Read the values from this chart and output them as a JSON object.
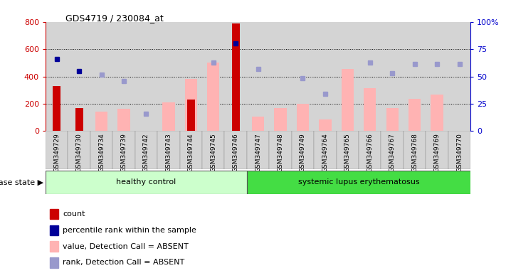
{
  "title": "GDS4719 / 230084_at",
  "samples": [
    "GSM349729",
    "GSM349730",
    "GSM349734",
    "GSM349739",
    "GSM349742",
    "GSM349743",
    "GSM349744",
    "GSM349745",
    "GSM349746",
    "GSM349747",
    "GSM349748",
    "GSM349749",
    "GSM349764",
    "GSM349765",
    "GSM349766",
    "GSM349767",
    "GSM349768",
    "GSM349769",
    "GSM349770"
  ],
  "healthy_indices": [
    0,
    1,
    2,
    3,
    4,
    5,
    6,
    7,
    8
  ],
  "lupus_indices": [
    9,
    10,
    11,
    12,
    13,
    14,
    15,
    16,
    17,
    18
  ],
  "count": [
    330,
    170,
    null,
    null,
    null,
    null,
    230,
    null,
    790,
    null,
    null,
    null,
    null,
    null,
    null,
    null,
    null,
    null,
    null
  ],
  "percentile_rank": [
    530,
    440,
    null,
    null,
    null,
    null,
    null,
    null,
    640,
    null,
    null,
    null,
    null,
    null,
    null,
    null,
    null,
    null,
    null
  ],
  "value_absent": [
    null,
    null,
    140,
    165,
    null,
    210,
    380,
    500,
    null,
    105,
    170,
    200,
    85,
    455,
    315,
    170,
    235,
    265,
    null
  ],
  "rank_absent": [
    null,
    null,
    415,
    365,
    125,
    null,
    null,
    500,
    null,
    455,
    null,
    385,
    275,
    null,
    500,
    425,
    490,
    490,
    490
  ],
  "ylim_left": [
    0,
    800
  ],
  "ylim_right": [
    0,
    100
  ],
  "yticks_left": [
    0,
    200,
    400,
    600,
    800
  ],
  "yticks_right": [
    0,
    25,
    50,
    75,
    100
  ],
  "ylabel_right_ticks": [
    "0",
    "25",
    "50",
    "75",
    "100%"
  ],
  "bar_dark_red": "#cc0000",
  "bar_pink": "#ffb3b3",
  "dot_dark_blue": "#000099",
  "dot_light_blue": "#9999cc",
  "bg_color": "#ffffff",
  "col_bg": "#d4d4d4",
  "group_bg_healthy": "#ccffcc",
  "group_bg_lupus": "#44dd44",
  "axis_color_left": "#cc0000",
  "axis_color_right": "#0000cc",
  "legend_items": [
    "count",
    "percentile rank within the sample",
    "value, Detection Call = ABSENT",
    "rank, Detection Call = ABSENT"
  ],
  "legend_colors": [
    "#cc0000",
    "#000099",
    "#ffb3b3",
    "#9999cc"
  ],
  "disease_state_label": "disease state",
  "healthy_label": "healthy control",
  "lupus_label": "systemic lupus erythematosus"
}
